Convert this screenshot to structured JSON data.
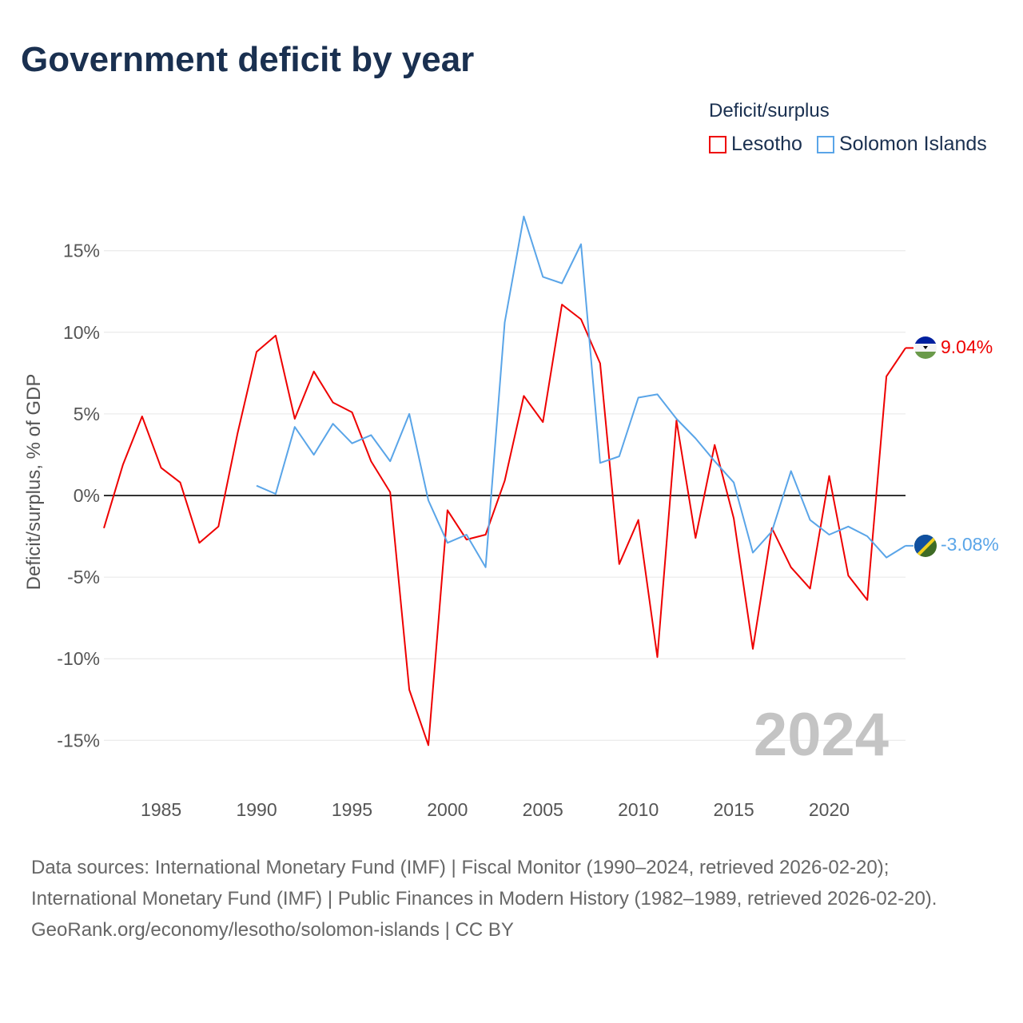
{
  "title": "Government deficit by year",
  "legend": {
    "title": "Deficit/surplus",
    "items": [
      {
        "label": "Lesotho",
        "color": "#ee0000"
      },
      {
        "label": "Solomon Islands",
        "color": "#5aa5e8"
      }
    ]
  },
  "footer": {
    "sources": "Data sources: International Monetary Fund (IMF) | Fiscal Monitor (1990–2024, retrieved 2026-02-20); International Monetary Fund (IMF) | Public Finances in Modern History (1982–1989, retrieved 2026-02-20).",
    "credit": "GeoRank.org/economy/lesotho/solomon-islands | CC BY"
  },
  "chart_data": {
    "type": "line",
    "title": "Government deficit by year",
    "xlabel": "",
    "ylabel": "Deficit/surplus, % of GDP",
    "year_label": "2024",
    "xlim": [
      1982,
      2024
    ],
    "ylim": [
      -17,
      18
    ],
    "x_ticks": [
      1985,
      1990,
      1995,
      2000,
      2005,
      2010,
      2015,
      2020
    ],
    "y_ticks": [
      -15,
      -10,
      -5,
      0,
      5,
      10,
      15
    ],
    "y_tick_labels": [
      "-15%",
      "-10%",
      "-5%",
      "0%",
      "5%",
      "10%",
      "15%"
    ],
    "grid": true,
    "legend_position": "top-right",
    "series": [
      {
        "name": "Lesotho",
        "color": "#ee0000",
        "end_label": "9.04%",
        "x": [
          1982,
          1983,
          1984,
          1985,
          1986,
          1987,
          1988,
          1989,
          1990,
          1991,
          1992,
          1993,
          1994,
          1995,
          1996,
          1997,
          1998,
          1999,
          2000,
          2001,
          2002,
          2003,
          2004,
          2005,
          2006,
          2007,
          2008,
          2009,
          2010,
          2011,
          2012,
          2013,
          2014,
          2015,
          2016,
          2017,
          2018,
          2019,
          2020,
          2021,
          2022,
          2023,
          2024
        ],
        "values": [
          -2.0,
          1.9,
          4.85,
          1.7,
          0.8,
          -2.9,
          -1.9,
          3.8,
          8.8,
          9.8,
          4.7,
          7.6,
          5.7,
          5.1,
          2.1,
          0.2,
          -11.9,
          -15.3,
          -0.9,
          -2.7,
          -2.4,
          0.9,
          6.1,
          4.5,
          11.7,
          10.8,
          8.1,
          -4.2,
          -1.5,
          -9.9,
          4.6,
          -2.6,
          3.1,
          -1.4,
          -9.4,
          -2.0,
          -4.4,
          -5.7,
          1.2,
          -4.9,
          -6.4,
          7.3,
          9.04
        ]
      },
      {
        "name": "Solomon Islands",
        "color": "#5aa5e8",
        "end_label": "-3.08%",
        "x": [
          1990,
          1991,
          1992,
          1993,
          1994,
          1995,
          1996,
          1997,
          1998,
          1999,
          2000,
          2001,
          2002,
          2003,
          2004,
          2005,
          2006,
          2007,
          2008,
          2009,
          2010,
          2011,
          2012,
          2013,
          2014,
          2015,
          2016,
          2017,
          2018,
          2019,
          2020,
          2021,
          2022,
          2023,
          2024
        ],
        "values": [
          0.6,
          0.1,
          4.2,
          2.5,
          4.4,
          3.2,
          3.7,
          2.1,
          5.0,
          -0.3,
          -2.9,
          -2.4,
          -4.4,
          10.6,
          17.1,
          13.4,
          13.0,
          15.4,
          2.0,
          2.4,
          6.0,
          6.2,
          4.7,
          3.5,
          2.1,
          0.8,
          -3.5,
          -2.2,
          1.5,
          -1.5,
          -2.4,
          -1.9,
          -2.5,
          -3.8,
          -3.08
        ]
      }
    ]
  }
}
